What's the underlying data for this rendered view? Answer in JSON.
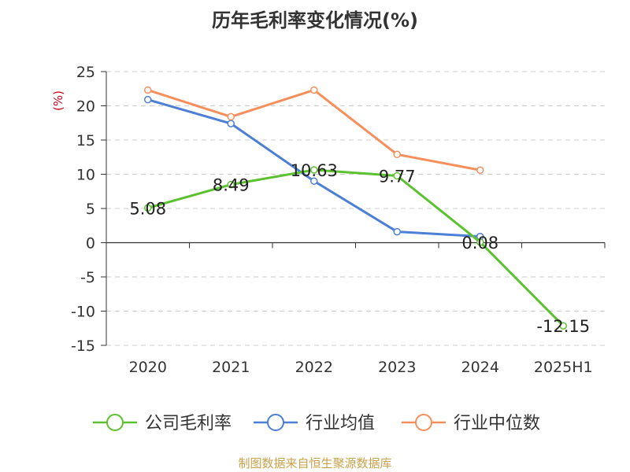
{
  "chart_data": {
    "type": "line",
    "title": "历年毛利率变化情况(%)",
    "ylabel": "(%)",
    "xlabel": "",
    "ylim": [
      -15,
      25
    ],
    "yticks": [
      25,
      20,
      15,
      10,
      5,
      0,
      -5,
      -10,
      -15
    ],
    "categories": [
      "2020",
      "2021",
      "2022",
      "2023",
      "2024",
      "2025H1"
    ],
    "grid": true,
    "legend": "bottom",
    "series": [
      {
        "name": "公司毛利率",
        "color": "#5cc12f",
        "values": [
          5.08,
          8.49,
          10.63,
          9.77,
          0.08,
          -12.15
        ],
        "labels": [
          "5.08",
          "8.49",
          "10.63",
          "9.77",
          "0.08",
          "-12.15"
        ]
      },
      {
        "name": "行业均值",
        "color": "#4e7fd6",
        "values": [
          20.9,
          17.4,
          9.0,
          1.6,
          0.9,
          null
        ]
      },
      {
        "name": "行业中位数",
        "color": "#f78f5c",
        "values": [
          22.3,
          18.4,
          22.3,
          12.9,
          10.6,
          null
        ]
      }
    ]
  },
  "footer": {
    "source": "制图数据来自恒生聚源数据库"
  }
}
